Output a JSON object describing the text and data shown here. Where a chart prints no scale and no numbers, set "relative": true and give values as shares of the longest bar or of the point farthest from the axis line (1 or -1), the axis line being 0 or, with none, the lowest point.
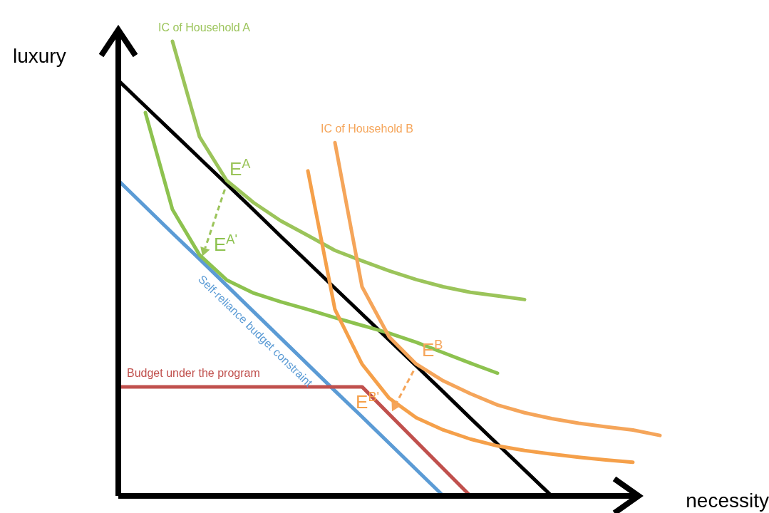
{
  "chart_data": {
    "type": "line",
    "relative": true,
    "xlabel": "necessity",
    "ylabel": "luxury",
    "legend": false,
    "marker": "none",
    "categories": [
      null,
      null,
      null,
      null,
      null,
      null,
      null,
      null,
      null,
      null,
      null,
      null,
      null,
      null,
      null,
      null,
      null,
      null,
      null,
      null,
      null
    ],
    "series": [
      {
        "color": "#000000",
        "values": [
          0.914,
          0.857,
          0.8,
          0.743,
          0.686,
          0.629,
          0.571,
          0.514,
          0.457,
          0.4,
          0.343,
          0.286,
          0.229,
          0.171,
          0.114,
          0.057,
          0,
          null,
          null,
          null,
          null
        ]
      },
      {
        "name": "Self-reliance budget constraint",
        "color": "#5b9bd5",
        "values": [
          0.694,
          0.636,
          0.578,
          0.521,
          0.463,
          0.405,
          0.347,
          0.289,
          0.231,
          0.174,
          0.116,
          0.058,
          0,
          null,
          null,
          null,
          null,
          null,
          null,
          null,
          null
        ]
      },
      {
        "name": "Budget under the program",
        "color": "#c0504d",
        "values": [
          0.24,
          0.24,
          0.24,
          0.24,
          0.24,
          0.24,
          0.24,
          0.24,
          0.24,
          0.24,
          0.18,
          0.12,
          0.06,
          0,
          null,
          null,
          null,
          null,
          null,
          null,
          null
        ]
      },
      {
        "name": "IC of  Household A",
        "color": "#9bc45a",
        "values": [
          null,
          null,
          1,
          0.79,
          0.694,
          0.645,
          0.605,
          0.573,
          0.54,
          0.517,
          0.495,
          0.476,
          0.46,
          0.448,
          0.44,
          0.432,
          null,
          null,
          null,
          null,
          null
        ]
      },
      {
        "color": "#8dc24f",
        "values": [
          null,
          0.843,
          0.63,
          0.53,
          0.475,
          0.446,
          0.427,
          0.41,
          0.392,
          0.375,
          0.358,
          0.338,
          0.315,
          0.292,
          0.27,
          null,
          null,
          null,
          null,
          null,
          null
        ]
      },
      {
        "name": "IC of Household B",
        "color": "#f5a55a",
        "values": [
          null,
          null,
          null,
          null,
          null,
          null,
          null,
          null,
          0.777,
          0.46,
          0.35,
          0.29,
          0.253,
          0.225,
          0.2,
          0.183,
          0.17,
          0.16,
          0.152,
          0.145,
          0.133
        ]
      },
      {
        "color": "#f5a04a",
        "values": [
          null,
          null,
          null,
          null,
          null,
          null,
          null,
          0.715,
          0.41,
          0.29,
          0.215,
          0.172,
          0.145,
          0.125,
          0.11,
          0.1,
          0.092,
          0.085,
          0.079,
          0.074,
          null
        ]
      }
    ],
    "annotations": [
      "E$^{A}$",
      "E$^{A'}$",
      "E$^{B}$",
      "E$^{B'}$"
    ]
  }
}
